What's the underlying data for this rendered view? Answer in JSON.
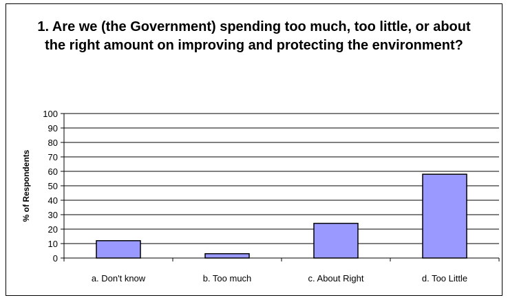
{
  "chart_data": {
    "type": "bar",
    "title": "1. Are we (the Government) spending too much, too little, or about the right amount on improving and protecting the environment?",
    "ylabel": "% of Respondents",
    "xlabel": "",
    "categories": [
      "a. Don't know",
      "b. Too much",
      "c. About Right",
      "d. Too Little"
    ],
    "values": [
      12,
      3,
      24,
      58
    ],
    "ylim": [
      0,
      100
    ],
    "yticks": [
      0,
      10,
      20,
      30,
      40,
      50,
      60,
      70,
      80,
      90,
      100
    ],
    "grid": true,
    "bar_color": "#9999ff"
  }
}
